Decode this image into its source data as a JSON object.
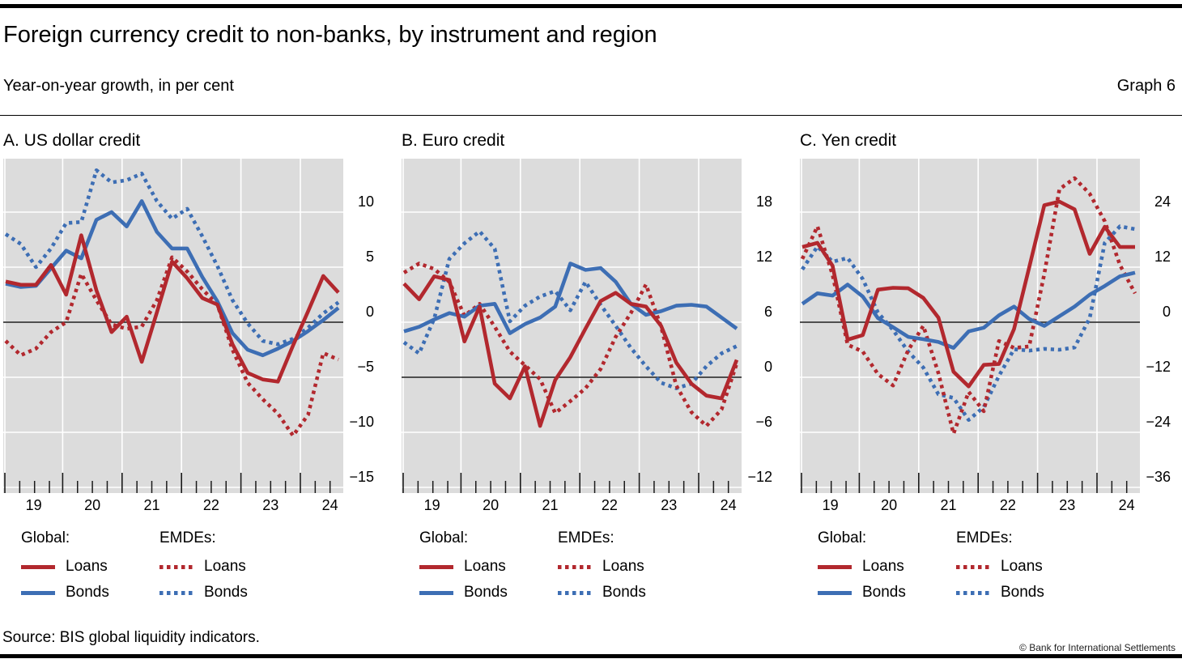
{
  "page": {
    "title": "Foreign currency credit to non-banks, by instrument and region",
    "subtitle": "Year-on-year growth, in per cent",
    "graph_label": "Graph 6",
    "source": "Source: BIS global liquidity indicators.",
    "copyright": "© Bank for International Settlements"
  },
  "colors": {
    "red": "#b2282e",
    "blue": "#3d6eb4",
    "plot_background": "#dcdcdc",
    "gridline": "#ffffff",
    "zero_line": "#1a1a1a"
  },
  "panels": [
    {
      "title": "A. US dollar credit"
    },
    {
      "title": "B. Euro credit"
    },
    {
      "title": "C. Yen credit"
    }
  ],
  "legend": {
    "groups": [
      {
        "header": "Global:",
        "items": [
          {
            "label": "Loans",
            "style": "solid",
            "color": "#b2282e"
          },
          {
            "label": "Bonds",
            "style": "solid",
            "color": "#3d6eb4"
          }
        ]
      },
      {
        "header": "EMDEs:",
        "items": [
          {
            "label": "Loans",
            "style": "dotted",
            "color": "#b2282e"
          },
          {
            "label": "Bonds",
            "style": "dotted",
            "color": "#3d6eb4"
          }
        ]
      }
    ]
  },
  "x_axis": {
    "year_labels": [
      "19",
      "20",
      "21",
      "22",
      "23",
      "24"
    ],
    "minor_ticks": "quarterly",
    "major_ticks": "yearly"
  },
  "chart_data": [
    {
      "type": "line",
      "title": "A. US dollar credit",
      "ylabel": "Year-on-year growth, in per cent",
      "legend_position": "bottom",
      "grid": true,
      "yticks": [
        10,
        5,
        0,
        -5,
        -10,
        -15
      ],
      "ylim": [
        -15.5,
        14.9
      ],
      "x": [
        "2018-Q3",
        "2018-Q4",
        "2019-Q1",
        "2019-Q2",
        "2019-Q3",
        "2019-Q4",
        "2020-Q1",
        "2020-Q2",
        "2020-Q3",
        "2020-Q4",
        "2021-Q1",
        "2021-Q2",
        "2021-Q3",
        "2021-Q4",
        "2022-Q1",
        "2022-Q2",
        "2022-Q3",
        "2022-Q4",
        "2023-Q1",
        "2023-Q2",
        "2023-Q3",
        "2023-Q4",
        "2024-Q1"
      ],
      "series": [
        {
          "name": "Global: Loans",
          "style": "solid",
          "color": "#b2282e",
          "values": [
            3.7,
            3.4,
            3.4,
            5.2,
            2.5,
            7.9,
            2.9,
            -0.9,
            0.5,
            -3.6,
            0.9,
            5.5,
            4.0,
            2.2,
            1.6,
            -2.0,
            -4.6,
            -5.2,
            -5.4,
            -2.1,
            1.0,
            4.2,
            2.7
          ]
        },
        {
          "name": "Global: Bonds",
          "style": "solid",
          "color": "#3d6eb4",
          "values": [
            3.5,
            3.2,
            3.3,
            4.9,
            6.5,
            5.8,
            9.3,
            10.0,
            8.7,
            11.0,
            8.2,
            6.7,
            6.7,
            4.1,
            1.9,
            -1.0,
            -2.5,
            -3.0,
            -2.4,
            -1.7,
            -0.8,
            0.2,
            1.3
          ]
        },
        {
          "name": "EMDEs: Loans",
          "style": "dotted",
          "color": "#b2282e",
          "values": [
            -1.7,
            -3.0,
            -2.4,
            -0.9,
            0.0,
            4.4,
            2.0,
            -0.2,
            -0.6,
            -0.4,
            2.0,
            5.9,
            4.6,
            3.0,
            1.6,
            -2.5,
            -5.5,
            -7.0,
            -8.3,
            -10.3,
            -8.4,
            -2.8,
            -3.4
          ]
        },
        {
          "name": "EMDEs: Bonds",
          "style": "dotted",
          "color": "#3d6eb4",
          "values": [
            8.0,
            7.1,
            5.0,
            6.7,
            9.0,
            9.1,
            13.8,
            12.7,
            12.9,
            13.5,
            11.0,
            9.4,
            10.3,
            7.8,
            5.1,
            2.0,
            -0.1,
            -1.7,
            -2.0,
            -1.5,
            -0.5,
            0.8,
            1.8
          ]
        }
      ]
    },
    {
      "type": "line",
      "title": "B. Euro credit",
      "ylabel": "Year-on-year growth, in per cent",
      "legend_position": "bottom",
      "grid": true,
      "yticks": [
        18,
        12,
        6,
        0,
        -6,
        -12
      ],
      "ylim": [
        -12.6,
        23.8
      ],
      "x": [
        "2018-Q3",
        "2018-Q4",
        "2019-Q1",
        "2019-Q2",
        "2019-Q3",
        "2019-Q4",
        "2020-Q1",
        "2020-Q2",
        "2020-Q3",
        "2020-Q4",
        "2021-Q1",
        "2021-Q2",
        "2021-Q3",
        "2021-Q4",
        "2022-Q1",
        "2022-Q2",
        "2022-Q3",
        "2022-Q4",
        "2023-Q1",
        "2023-Q2",
        "2023-Q3",
        "2023-Q4",
        "2024-Q1"
      ],
      "series": [
        {
          "name": "Global: Loans",
          "style": "solid",
          "color": "#b2282e",
          "values": [
            10.2,
            8.5,
            11.0,
            10.6,
            3.9,
            7.7,
            -0.7,
            -2.3,
            1.2,
            -5.3,
            -0.3,
            2.2,
            5.3,
            8.3,
            9.2,
            8.0,
            7.7,
            5.6,
            1.6,
            -0.7,
            -2.0,
            -2.3,
            1.9
          ]
        },
        {
          "name": "Global: Bonds",
          "style": "solid",
          "color": "#3d6eb4",
          "values": [
            5.0,
            5.5,
            6.3,
            7.0,
            6.6,
            7.8,
            8.0,
            4.8,
            5.8,
            6.5,
            7.7,
            12.4,
            11.7,
            11.9,
            10.4,
            8.0,
            6.8,
            7.2,
            7.8,
            7.9,
            7.7,
            6.5,
            5.3
          ]
        },
        {
          "name": "EMDEs: Loans",
          "style": "dotted",
          "color": "#b2282e",
          "values": [
            11.4,
            12.4,
            11.8,
            10.4,
            6.7,
            8.0,
            5.5,
            2.8,
            1.3,
            -0.2,
            -3.9,
            -2.6,
            -1.2,
            0.9,
            4.4,
            7.0,
            10.1,
            5.5,
            -0.9,
            -3.8,
            -5.3,
            -3.5,
            1.5
          ]
        },
        {
          "name": "EMDEs: Bonds",
          "style": "dotted",
          "color": "#3d6eb4",
          "values": [
            3.8,
            2.6,
            6.4,
            12.9,
            14.6,
            15.9,
            14.0,
            6.1,
            7.8,
            8.8,
            9.4,
            7.3,
            10.4,
            7.9,
            5.6,
            3.2,
            1.2,
            -0.6,
            -1.2,
            -0.7,
            1.2,
            2.6,
            3.4
          ]
        }
      ]
    },
    {
      "type": "line",
      "title": "C. Yen credit",
      "ylabel": "Year-on-year growth, in per cent",
      "legend_position": "bottom",
      "grid": true,
      "yticks": [
        24,
        12,
        0,
        -12,
        -24,
        -36
      ],
      "ylim": [
        -37.2,
        35.6
      ],
      "x": [
        "2018-Q3",
        "2018-Q4",
        "2019-Q1",
        "2019-Q2",
        "2019-Q3",
        "2019-Q4",
        "2020-Q1",
        "2020-Q2",
        "2020-Q3",
        "2020-Q4",
        "2021-Q1",
        "2021-Q2",
        "2021-Q3",
        "2021-Q4",
        "2022-Q1",
        "2022-Q2",
        "2022-Q3",
        "2022-Q4",
        "2023-Q1",
        "2023-Q2",
        "2023-Q3",
        "2023-Q4",
        "2024-Q1"
      ],
      "series": [
        {
          "name": "Global: Loans",
          "style": "solid",
          "color": "#b2282e",
          "values": [
            16.4,
            17.3,
            12.3,
            -3.8,
            -2.8,
            7.1,
            7.5,
            7.4,
            5.3,
            1.0,
            -10.8,
            -14.0,
            -9.3,
            -9.1,
            -1.5,
            11.9,
            25.5,
            26.3,
            24.6,
            14.9,
            20.8,
            16.4,
            16.4
          ]
        },
        {
          "name": "Global: Bonds",
          "style": "solid",
          "color": "#3d6eb4",
          "values": [
            4.0,
            6.3,
            5.8,
            8.2,
            5.6,
            0.9,
            -1.1,
            -3.2,
            -3.7,
            -4.3,
            -5.6,
            -2.0,
            -1.2,
            1.5,
            3.4,
            0.7,
            -0.8,
            1.3,
            3.4,
            6.0,
            7.9,
            10.0,
            10.8
          ]
        },
        {
          "name": "EMDEs: Loans",
          "style": "dotted",
          "color": "#b2282e",
          "values": [
            13.8,
            20.9,
            10.3,
            -4.9,
            -6.4,
            -11.3,
            -13.8,
            -6.1,
            -0.8,
            -11.1,
            -24.3,
            -15.2,
            -19.4,
            -4.1,
            -5.6,
            -5.3,
            10.5,
            29.0,
            31.4,
            28.0,
            22.0,
            12.5,
            6.3
          ]
        },
        {
          "name": "EMDEs: Bonds",
          "style": "dotted",
          "color": "#3d6eb4",
          "values": [
            11.5,
            16.5,
            13.2,
            14.0,
            9.4,
            2.1,
            -1.7,
            -6.4,
            -9.9,
            -15.7,
            -16.5,
            -21.3,
            -18.5,
            -11.7,
            -5.9,
            -6.2,
            -5.8,
            -6.0,
            -5.5,
            0.9,
            17.3,
            20.9,
            20.3
          ]
        }
      ]
    }
  ]
}
